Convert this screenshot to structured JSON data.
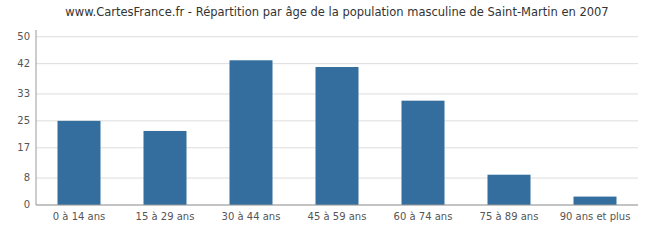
{
  "chart_data": {
    "type": "bar",
    "title": "www.CartesFrance.fr - Répartition par âge de la population masculine de Saint-Martin en 2007",
    "categories": [
      "0 à 14 ans",
      "15 à 29 ans",
      "30 à 44 ans",
      "45 à 59 ans",
      "60 à 74 ans",
      "75 à 89 ans",
      "90 ans et plus"
    ],
    "values": [
      25,
      22,
      43,
      41,
      31,
      9,
      2.5
    ],
    "color": "#336e9e",
    "ylim": [
      0,
      52
    ],
    "yticks": [
      0,
      8,
      17,
      25,
      33,
      42,
      50
    ],
    "grid": true
  }
}
